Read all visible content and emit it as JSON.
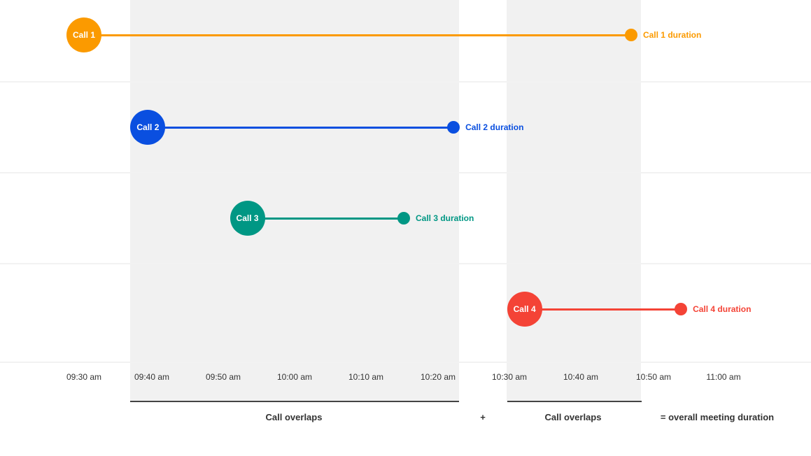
{
  "axis": {
    "ticks": [
      "09:30 am",
      "09:40 am",
      "09:50 am",
      "10:00 am",
      "10:10 am",
      "10:20 am",
      "10:30 am",
      "10:40 am",
      "10:50 am",
      "11:00 am"
    ]
  },
  "calls": [
    {
      "label": "Call 1",
      "duration_label": "Call 1 duration",
      "start": "09:30",
      "end": "10:47",
      "color": "#fb9a00"
    },
    {
      "label": "Call 2",
      "duration_label": "Call 2 duration",
      "start": "09:39",
      "end": "10:22",
      "color": "#0a4fe0"
    },
    {
      "label": "Call 3",
      "duration_label": "Call 3 duration",
      "start": "09:53",
      "end": "10:15",
      "color": "#009784"
    },
    {
      "label": "Call 4",
      "duration_label": "Call 4 duration",
      "start": "10:32",
      "end": "10:54",
      "color": "#f44336"
    }
  ],
  "footer": {
    "overlap1": "Call overlaps",
    "plus": "+",
    "overlap2": "Call overlaps",
    "result": "= overall meeting duration"
  }
}
